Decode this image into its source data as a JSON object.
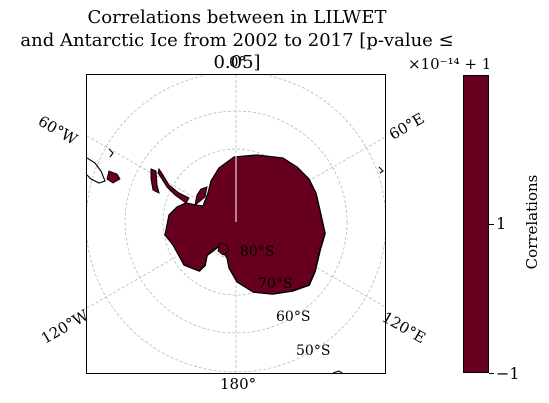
{
  "title_line1": "Correlations between in LILWET",
  "title_line2": "and Antarctic Ice from 2002 to 2017 [p-value ≤ 0.05]",
  "map": {
    "projection": "south-polar-stereographic",
    "lon_labels": {
      "top": "0°",
      "bottom": "180°",
      "upper_left": "60°W",
      "upper_right": "60°E",
      "lower_left": "120°W",
      "lower_right": "120°E"
    },
    "lat_labels": {
      "l80": "80°S",
      "l70": "70°S",
      "l60": "60°S",
      "l50": "50°S"
    },
    "fill_color": "#67001f",
    "grid_color": "#b0b0b0"
  },
  "colorbar": {
    "offset_label": "×10⁻¹⁴ + 1",
    "tick_top": "1",
    "tick_bottom": "−1",
    "label": "Correlations",
    "color": "#67001f"
  }
}
